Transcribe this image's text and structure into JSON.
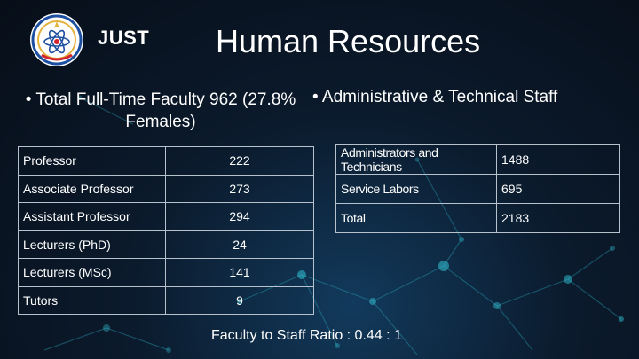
{
  "header": {
    "brand": "JUST",
    "title": "Human Resources"
  },
  "faculty": {
    "bullet": "Total Full-Time Faculty 962 (27.8% Females)",
    "rows": [
      {
        "label": "Professor",
        "value": "222"
      },
      {
        "label": "Associate Professor",
        "value": "273"
      },
      {
        "label": "Assistant Professor",
        "value": "294"
      },
      {
        "label": "Lecturers (PhD)",
        "value": "24"
      },
      {
        "label": "Lecturers (MSc)",
        "value": "141"
      },
      {
        "label": "Tutors",
        "value": "9"
      }
    ]
  },
  "staff": {
    "bullet": "Administrative & Technical Staff",
    "rows": [
      {
        "label": "Administrators and Technicians",
        "value": "1488"
      },
      {
        "label": "Service Labors",
        "value": "695"
      },
      {
        "label": "Total",
        "value": "2183"
      }
    ]
  },
  "footer": {
    "ratio": "Faculty to Staff Ratio : 0.44 : 1"
  },
  "colors": {
    "background": "#0b1a2c",
    "network_glow": "#2fb5c9",
    "table_border": "#b8c2cc",
    "logo_blue": "#1d4fa0",
    "logo_red": "#d3232f",
    "logo_gold": "#e3b23c"
  }
}
